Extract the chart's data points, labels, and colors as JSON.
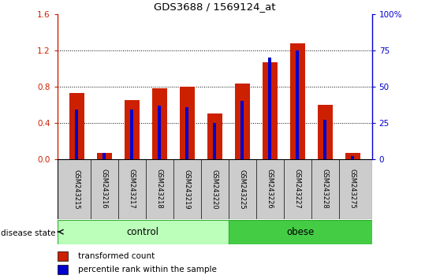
{
  "title": "GDS3688 / 1569124_at",
  "samples": [
    "GSM243215",
    "GSM243216",
    "GSM243217",
    "GSM243218",
    "GSM243219",
    "GSM243220",
    "GSM243225",
    "GSM243226",
    "GSM243227",
    "GSM243228",
    "GSM243275"
  ],
  "red_values": [
    0.73,
    0.07,
    0.65,
    0.78,
    0.8,
    0.5,
    0.83,
    1.07,
    1.28,
    0.6,
    0.07
  ],
  "blue_values_pct": [
    34,
    4,
    34,
    37,
    36,
    25,
    40,
    70,
    75,
    27,
    2
  ],
  "control_count": 6,
  "obese_count": 5,
  "left_ylim": [
    0,
    1.6
  ],
  "right_ylim": [
    0,
    100
  ],
  "left_yticks": [
    0,
    0.4,
    0.8,
    1.2,
    1.6
  ],
  "right_yticks": [
    0,
    25,
    50,
    75,
    100
  ],
  "right_yticklabels": [
    "0",
    "25",
    "50",
    "75",
    "100%"
  ],
  "red_bar_width": 0.55,
  "blue_bar_width": 0.12,
  "red_color": "#cc2000",
  "blue_color": "#0000cc",
  "control_color": "#bbffbb",
  "obese_color": "#44cc44",
  "label_bg_color": "#cccccc",
  "legend_red": "transformed count",
  "legend_blue": "percentile rank within the sample"
}
